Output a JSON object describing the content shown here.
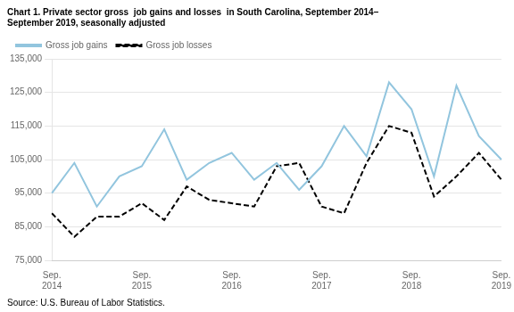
{
  "chart_data": {
    "type": "line",
    "title": "Chart 1. Private sector gross  job gains and losses  in South Carolina, September 2014–",
    "subtitle": "September 2019, seasonally adjusted",
    "annotations": [
      "Source: U.S. Bureau of Labor Statistics."
    ],
    "categories": [
      "Sep.\n2014",
      null,
      null,
      null,
      "Sep.\n2015",
      null,
      null,
      null,
      "Sep.\n2016",
      null,
      null,
      null,
      "Sep.\n2017",
      null,
      null,
      null,
      "Sep.\n2018",
      null,
      null,
      null,
      "Sep.\n2019"
    ],
    "series": [
      {
        "name": "Gross job gains",
        "color": "#92c5de",
        "line_style": "solid",
        "values": [
          95000,
          104000,
          91000,
          100000,
          103000,
          114000,
          99000,
          104000,
          107000,
          99000,
          104000,
          96000,
          103000,
          115000,
          106000,
          128000,
          120000,
          100000,
          127000,
          112000,
          105000
        ]
      },
      {
        "name": "Gross job losses",
        "color": "#000000",
        "line_style": "dashed",
        "values": [
          89000,
          82000,
          88000,
          88000,
          92000,
          87000,
          97000,
          93000,
          92000,
          91000,
          103000,
          104000,
          91000,
          89000,
          104000,
          115000,
          113000,
          94000,
          100000,
          107000,
          99000
        ]
      }
    ],
    "ylim": [
      75000,
      135000
    ],
    "yticks": [
      {
        "value": 75000,
        "label": "75,000"
      },
      {
        "value": 85000,
        "label": "85,000"
      },
      {
        "value": 95000,
        "label": "95,000"
      },
      {
        "value": 105000,
        "label": "105,000"
      },
      {
        "value": 115000,
        "label": "115,000"
      },
      {
        "value": 125000,
        "label": "125,000"
      },
      {
        "value": 135000,
        "label": "135,000"
      }
    ],
    "grid": "y",
    "legend": "upper left"
  }
}
